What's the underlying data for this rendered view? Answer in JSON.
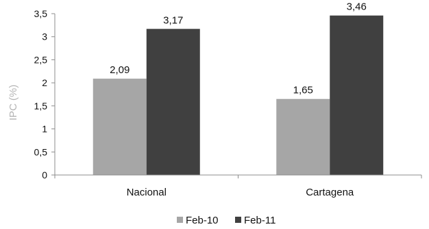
{
  "chart_data": {
    "type": "bar",
    "title": "",
    "xlabel": "",
    "ylabel": "IPC (%)",
    "categories": [
      "Nacional",
      "Cartagena"
    ],
    "series": [
      {
        "name": "Feb-10",
        "values": [
          2.09,
          1.65
        ],
        "labels": [
          "2,09",
          "1,65"
        ],
        "color": "#a6a6a6"
      },
      {
        "name": "Feb-11",
        "values": [
          3.17,
          3.46
        ],
        "labels": [
          "3,17",
          "3,46"
        ],
        "color": "#404040"
      }
    ],
    "ylim": [
      0,
      3.5
    ],
    "yticks": [
      {
        "value": 0,
        "label": "0"
      },
      {
        "value": 0.5,
        "label": "0,5"
      },
      {
        "value": 1,
        "label": "1"
      },
      {
        "value": 1.5,
        "label": "1,5"
      },
      {
        "value": 2,
        "label": "2"
      },
      {
        "value": 2.5,
        "label": "2,5"
      },
      {
        "value": 3,
        "label": "3"
      },
      {
        "value": 3.5,
        "label": "3,5"
      }
    ],
    "grid": false,
    "legend": "bottom"
  }
}
